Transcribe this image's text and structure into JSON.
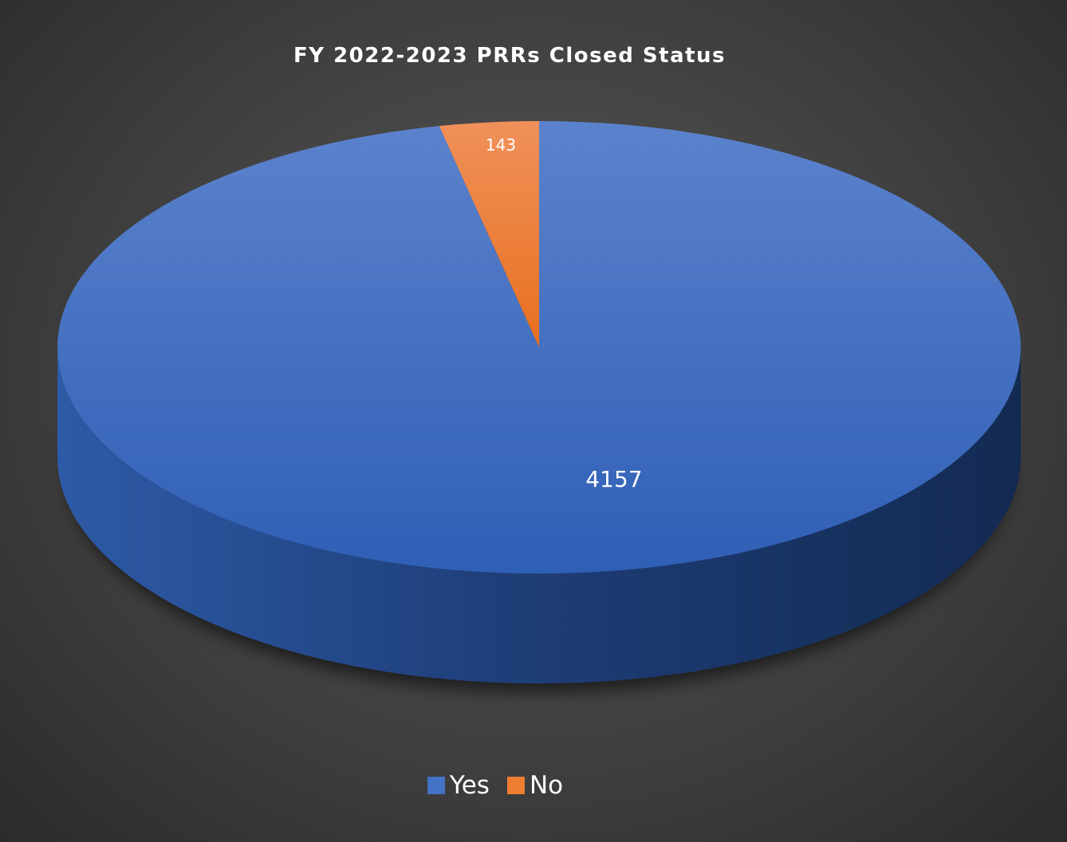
{
  "chart_data": {
    "type": "pie",
    "title": "FY 2022-2023 PRRs Closed Status",
    "categories": [
      "Yes",
      "No"
    ],
    "values": [
      4157,
      143
    ],
    "colors": [
      "#4472c4",
      "#ed7d31"
    ],
    "data_labels": [
      "4157",
      "143"
    ],
    "legend_position": "bottom",
    "style": "3d"
  }
}
